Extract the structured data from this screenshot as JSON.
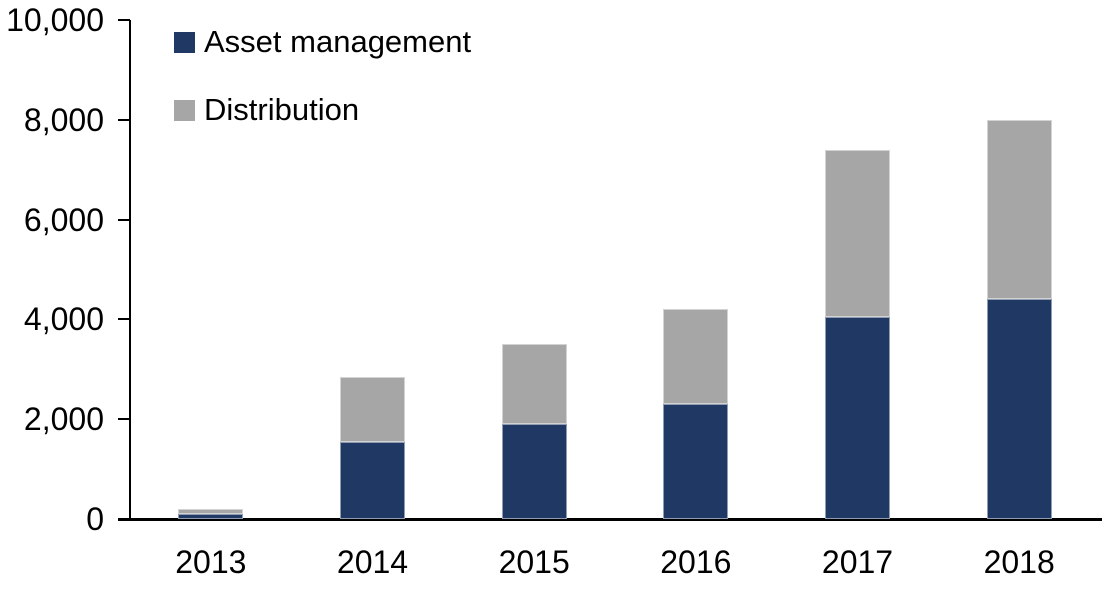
{
  "chart_data": {
    "type": "bar",
    "stacked": true,
    "title": "",
    "categories": [
      "2013",
      "2014",
      "2015",
      "2016",
      "2017",
      "2018"
    ],
    "series": [
      {
        "name": "Asset management",
        "color": "#1F3864",
        "values": [
          100,
          1550,
          1900,
          2300,
          4050,
          4400
        ]
      },
      {
        "name": "Distribution",
        "color": "#A6A6A6",
        "values": [
          100,
          1300,
          1600,
          1900,
          3350,
          3600
        ]
      }
    ],
    "stack_totals": [
      200,
      2850,
      3500,
      4200,
      7400,
      8000
    ],
    "xlabel": "",
    "ylabel": "",
    "ylim": [
      0,
      10000
    ],
    "ytick_step": 2000,
    "ytick_labels": [
      "0",
      "2,000",
      "4,000",
      "6,000",
      "8,000",
      "10,000"
    ],
    "grid": false,
    "legend_position": "top-left",
    "axis_color": "#000000",
    "background_color": "#FFFFFF"
  }
}
